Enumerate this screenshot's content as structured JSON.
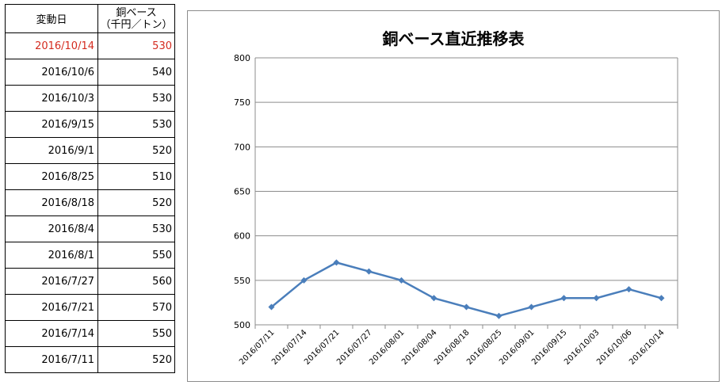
{
  "table": {
    "header": {
      "date": "変動日",
      "value_line1": "銅ベース",
      "value_line2": "（千円／トン）"
    },
    "rows": [
      {
        "date": "2016/10/14",
        "value": "530",
        "highlight": true
      },
      {
        "date": "2016/10/6",
        "value": "540"
      },
      {
        "date": "2016/10/3",
        "value": "530"
      },
      {
        "date": "2016/9/15",
        "value": "530"
      },
      {
        "date": "2016/9/1",
        "value": "520"
      },
      {
        "date": "2016/8/25",
        "value": "510"
      },
      {
        "date": "2016/8/18",
        "value": "520"
      },
      {
        "date": "2016/8/4",
        "value": "530"
      },
      {
        "date": "2016/8/1",
        "value": "550"
      },
      {
        "date": "2016/7/27",
        "value": "560"
      },
      {
        "date": "2016/7/21",
        "value": "570"
      },
      {
        "date": "2016/7/14",
        "value": "550"
      },
      {
        "date": "2016/7/11",
        "value": "520"
      }
    ],
    "highlight_color": "#d42a1e"
  },
  "chart_data": {
    "type": "line",
    "title": "銅ベース直近推移表",
    "xlabel": "",
    "ylabel": "",
    "categories": [
      "2016/07/11",
      "2016/07/14",
      "2016/07/21",
      "2016/07/27",
      "2016/08/01",
      "2016/08/04",
      "2016/08/18",
      "2016/08/25",
      "2016/09/01",
      "2016/09/15",
      "2016/10/03",
      "2016/10/06",
      "2016/10/14"
    ],
    "series": [
      {
        "values": [
          520,
          550,
          570,
          560,
          550,
          530,
          520,
          510,
          520,
          530,
          530,
          540,
          530
        ]
      }
    ],
    "ylim": [
      500,
      800
    ],
    "yticks": [
      500,
      550,
      600,
      650,
      700,
      750,
      800
    ],
    "grid": true,
    "legend": "none",
    "line_color": "#4a7ebb",
    "grid_color": "#8c8c8c"
  }
}
